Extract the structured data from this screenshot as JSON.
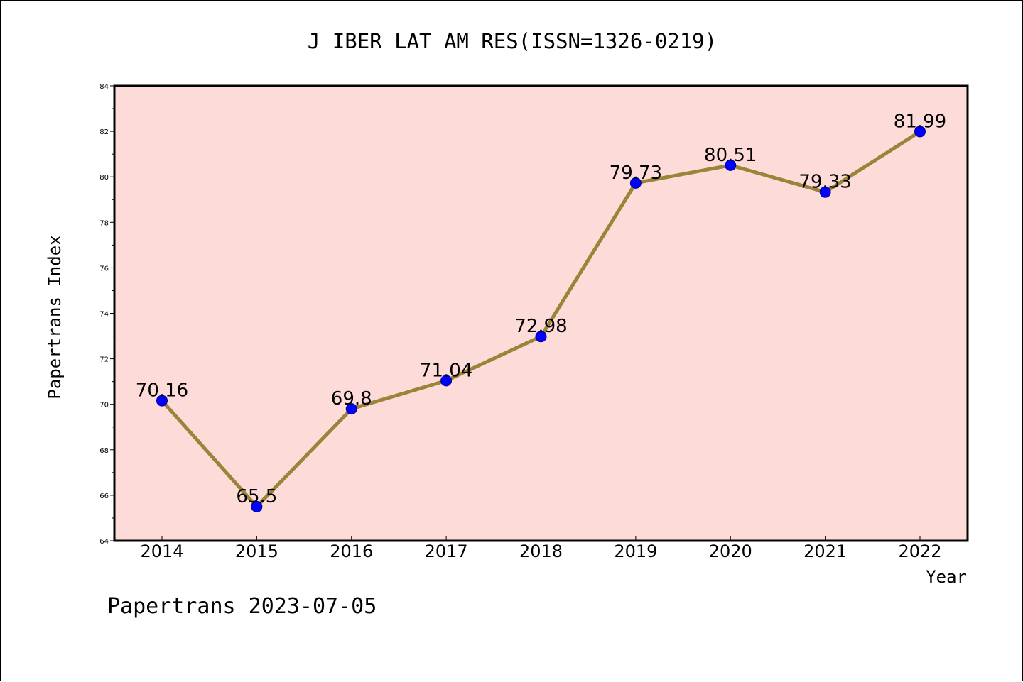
{
  "chart_data": {
    "type": "line",
    "title": "J IBER LAT AM RES(ISSN=1326-0219)",
    "xlabel": "Year",
    "ylabel": "Papertrans Index",
    "categories": [
      "2014",
      "2015",
      "2016",
      "2017",
      "2018",
      "2019",
      "2020",
      "2021",
      "2022"
    ],
    "values": [
      70.16,
      65.5,
      69.8,
      71.04,
      72.98,
      79.73,
      80.51,
      79.33,
      81.99
    ],
    "data_labels": [
      "70.16",
      "65.5",
      "69.8",
      "71.04",
      "72.98",
      "79.73",
      "80.51",
      "79.33",
      "81.99"
    ],
    "ylim": [
      64,
      84
    ],
    "yticks": [
      "64",
      "66",
      "68",
      "70",
      "72",
      "74",
      "76",
      "78",
      "80",
      "82",
      "84"
    ],
    "grid": false,
    "legend": "none",
    "colors": {
      "plot_background": "#fddbd8",
      "line": "#9a8438",
      "marker": "#0000ff",
      "marker_edge": "#00008b"
    }
  },
  "footer": {
    "watermark": "Papertrans 2023-07-05"
  }
}
